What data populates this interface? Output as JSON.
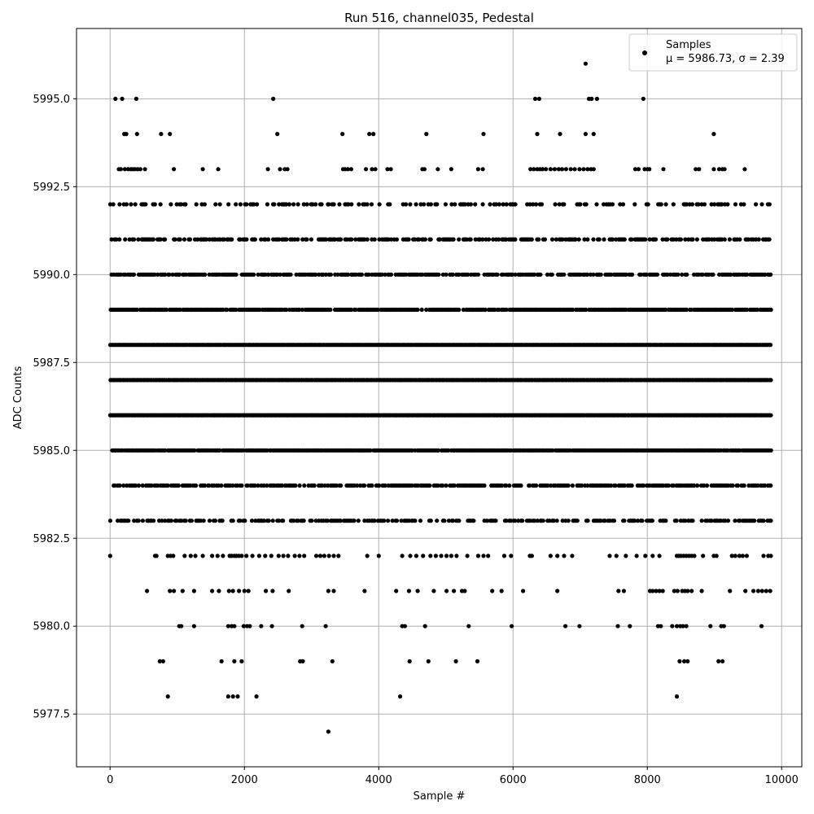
{
  "chart_data": {
    "type": "scatter",
    "title": "Run 516, channel035, Pedestal",
    "xlabel": "Sample #",
    "ylabel": "ADC Counts",
    "xlim": [
      -500,
      10300
    ],
    "ylim": [
      5976,
      5997
    ],
    "x_ticks": [
      0,
      2000,
      4000,
      6000,
      8000,
      10000
    ],
    "x_tick_labels": [
      "0",
      "2000",
      "4000",
      "6000",
      "8000",
      "10000"
    ],
    "y_ticks": [
      5977.5,
      5980.0,
      5982.5,
      5985.0,
      5987.5,
      5990.0,
      5992.5,
      5995.0
    ],
    "y_tick_labels": [
      "5977.5",
      "5980.0",
      "5982.5",
      "5985.0",
      "5987.5",
      "5990.0",
      "5992.5",
      "5995.0"
    ],
    "grid": true,
    "legend_position": "top-right",
    "marker_color": "#000000",
    "series": [
      {
        "name": "Samples",
        "legend_stat": "μ = 5986.73, σ = 2.39",
        "mean": 5986.73,
        "sigma": 2.39,
        "x_range": [
          0,
          9850
        ],
        "levels": [
          {
            "y": 5996,
            "x": [
              7080
            ]
          },
          {
            "y": 5995,
            "x": [
              80,
              180,
              390,
              2430,
              6330,
              6390,
              7130,
              7170,
              7250,
              7940
            ]
          },
          {
            "y": 5994,
            "x": [
              210,
              240,
              400,
              760,
              890,
              2490,
              3460,
              3860,
              3920,
              4710,
              5560,
              6360,
              6700,
              7080,
              7200,
              8990
            ]
          },
          {
            "y": 5993,
            "x": [
              130,
              160,
              220,
              270,
              310,
              340,
              370,
              410,
              450,
              520,
              950,
              1380,
              1610,
              2350,
              2530,
              2600,
              2640,
              3470,
              3500,
              3540,
              3590,
              3810,
              3900,
              3950,
              4130,
              4180,
              4650,
              4680,
              4880,
              5080,
              5480,
              5550,
              6260,
              6310,
              6360,
              6400,
              6440,
              6490,
              6560,
              6620,
              6680,
              6730,
              6790,
              6860,
              6920,
              6990,
              7050,
              7110,
              7160,
              7200,
              7820,
              7870,
              7960,
              8000,
              8030,
              8240,
              8720,
              8770,
              8990,
              9070,
              9120,
              9150,
              9450
            ]
          }
        ],
        "dense_levels": [
          5983,
          5984,
          5985,
          5986,
          5987,
          5988,
          5989,
          5990,
          5991,
          5992
        ],
        "sparse_levels": [
          {
            "y": 5982,
            "x": [
              0,
              670,
              690,
              860,
              900,
              940,
              1110,
              1200,
              1270,
              1380,
              1520,
              1600,
              1680,
              1780,
              1810,
              1850,
              1880,
              1920,
              1960,
              2030,
              2120,
              2220,
              2310,
              2400,
              2510,
              2580,
              2650,
              2750,
              2820,
              2890,
              3070,
              3130,
              3190,
              3260,
              3330,
              3400,
              3830,
              4000,
              4350,
              4470,
              4560,
              4660,
              4770,
              4850,
              4930,
              5010,
              5080,
              5160,
              5320,
              5480,
              5560,
              5630,
              5870,
              5970,
              6250,
              6280,
              6560,
              6660,
              6760,
              6880,
              7440,
              7540,
              7680,
              7840,
              7970,
              8080,
              8180,
              8440,
              8470,
              8500,
              8540,
              8580,
              8620,
              8660,
              8700,
              8830,
              8990,
              9030,
              9260,
              9310,
              9370,
              9420,
              9480,
              9730,
              9800,
              9840
            ]
          },
          {
            "y": 5981,
            "x": [
              550,
              890,
              950,
              1080,
              1250,
              1520,
              1620,
              1770,
              1830,
              1920,
              2000,
              2060,
              2320,
              2420,
              2660,
              3250,
              3330,
              3790,
              4260,
              4450,
              4580,
              4820,
              5010,
              5120,
              5240,
              5280,
              5690,
              5830,
              6150,
              6660,
              7570,
              7650,
              8040,
              8080,
              8130,
              8180,
              8230,
              8400,
              8450,
              8520,
              8560,
              8600,
              8660,
              8810,
              9230,
              9460,
              9580,
              9650,
              9710,
              9770,
              9830
            ]
          },
          {
            "y": 5980,
            "x": [
              1030,
              1060,
              1250,
              1760,
              1810,
              1850,
              1990,
              2040,
              2080,
              2250,
              2410,
              2860,
              3210,
              4350,
              4390,
              4690,
              5340,
              5980,
              6780,
              6990,
              7560,
              7740,
              8160,
              8200,
              8370,
              8440,
              8490,
              8530,
              8580,
              8940,
              9100,
              9140,
              9700
            ]
          },
          {
            "y": 5979,
            "x": [
              740,
              790,
              1660,
              1850,
              1960,
              2830,
              2870,
              3310,
              4460,
              4740,
              5150,
              5470,
              8480,
              8550,
              8600,
              9060,
              9120
            ]
          },
          {
            "y": 5978,
            "x": [
              860,
              1760,
              1830,
              1900,
              2180,
              4320,
              8440
            ]
          },
          {
            "y": 5977,
            "x": [
              3250
            ]
          }
        ]
      }
    ]
  }
}
